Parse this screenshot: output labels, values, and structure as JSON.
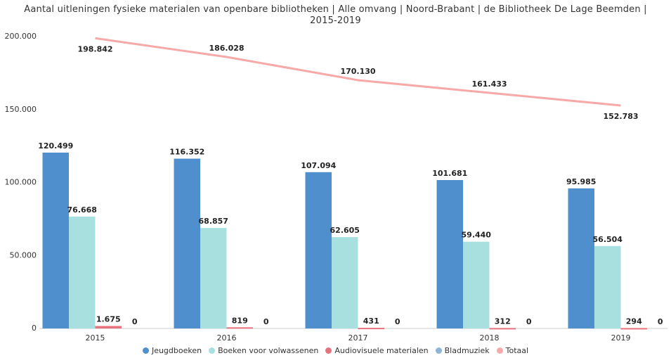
{
  "chart_data": {
    "type": "bar",
    "title": "Aantal uitleningen fysieke materialen van openbare bibliotheken | Alle omvang | Noord-Brabant | de Bibliotheek De Lage Beemden | 2015-2019",
    "categories": [
      "2015",
      "2016",
      "2017",
      "2018",
      "2019"
    ],
    "ylim": [
      0,
      200000
    ],
    "yticks": [
      0,
      {
        "value": 50000,
        "label": "50.000"
      },
      {
        "value": 100000,
        "label": "100.000"
      },
      {
        "value": 150000,
        "label": "150.000"
      },
      {
        "value": 200000,
        "label": "200.000"
      }
    ],
    "grid": false,
    "legend": "bottom",
    "series": [
      {
        "name": "Jeugdboeken",
        "type": "bar",
        "color": "#4f8fce",
        "values": [
          120499,
          116352,
          107094,
          101681,
          95985
        ],
        "value_labels": [
          "120.499",
          "116.352",
          "107.094",
          "101.681",
          "95.985"
        ]
      },
      {
        "name": "Boeken voor volwassenen",
        "type": "bar",
        "color": "#a8e0df",
        "values": [
          76668,
          68857,
          62605,
          59440,
          56504
        ],
        "value_labels": [
          "76.668",
          "68.857",
          "62.605",
          "59.440",
          "56.504"
        ]
      },
      {
        "name": "Audiovisuele materialen",
        "type": "bar",
        "color": "#e8727b",
        "values": [
          1675,
          819,
          431,
          312,
          294
        ],
        "value_labels": [
          "1.675",
          "819",
          "431",
          "312",
          "294"
        ]
      },
      {
        "name": "Bladmuziek",
        "type": "bar",
        "color": "#8fb4d8",
        "values": [
          0,
          0,
          0,
          0,
          0
        ]
      },
      {
        "name": "Totaal",
        "type": "line",
        "color": "#f7a9a8",
        "values": [
          198842,
          186028,
          170130,
          161433,
          152783
        ],
        "value_labels": [
          "198.842",
          "186.028",
          "170.130",
          "161.433",
          "152.783"
        ]
      }
    ]
  }
}
